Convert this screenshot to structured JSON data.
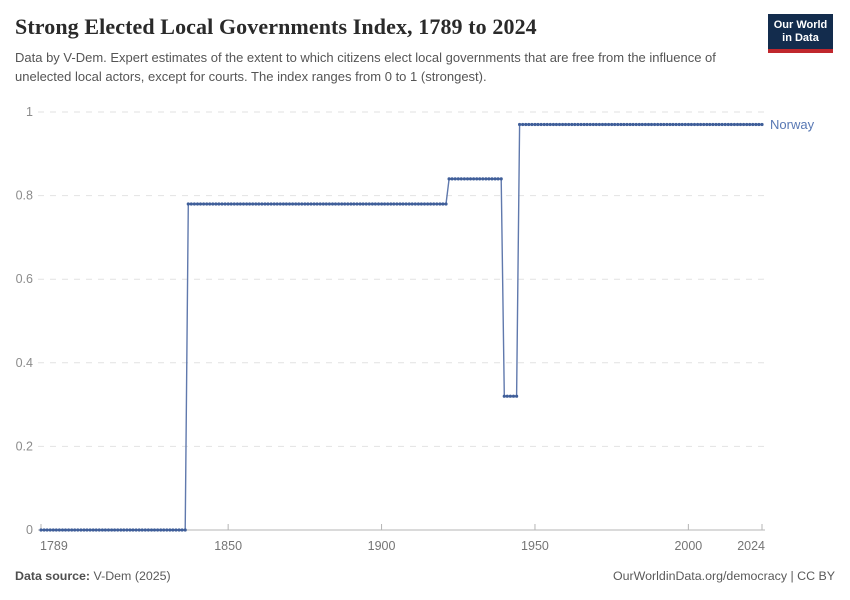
{
  "header": {
    "title": "Strong Elected Local Governments Index, 1789 to 2024",
    "subtitle": "Data by V-Dem. Expert estimates of the extent to which citizens elect local governments that are free from the influence of unelected local actors, except for courts. The index ranges from 0 to 1 (strongest).",
    "logo": {
      "line1": "Our World",
      "line2": "in Data",
      "navy": "#132c4d",
      "red": "#c0272d"
    }
  },
  "chart_data": {
    "type": "line",
    "title": "Strong Elected Local Governments Index, 1789 to 2024",
    "xlabel": "",
    "ylabel": "",
    "x_range": [
      1789,
      2024
    ],
    "y_range": [
      0,
      1
    ],
    "x_ticks": [
      1789,
      1850,
      1900,
      1950,
      2000,
      2024
    ],
    "y_ticks": [
      0,
      0.2,
      0.4,
      0.6,
      0.8,
      1
    ],
    "grid": "horizontal-dashed",
    "legend_position": "end-of-line-label",
    "marker_style": "dot-per-year",
    "series": [
      {
        "name": "Norway",
        "color": "#3f5e99",
        "line_color": "#6079ad",
        "label_color": "#5878b4",
        "segments": [
          {
            "from": 1789,
            "to": 1836,
            "value": 0
          },
          {
            "from": 1837,
            "to": 1921,
            "value": 0.78
          },
          {
            "from": 1922,
            "to": 1939,
            "value": 0.84
          },
          {
            "from": 1940,
            "to": 1944,
            "value": 0.32
          },
          {
            "from": 1945,
            "to": 2024,
            "value": 0.97
          }
        ]
      }
    ],
    "colors": {
      "gridline": "#e2e2e2",
      "axis": "#b4b4b4",
      "y_tick_label": "#8c8c8c",
      "x_tick_label": "#757575"
    }
  },
  "footer": {
    "source_label": "Data source:",
    "source_value": " V-Dem (2025)",
    "right_text": "OurWorldinData.org/democracy | CC BY"
  }
}
